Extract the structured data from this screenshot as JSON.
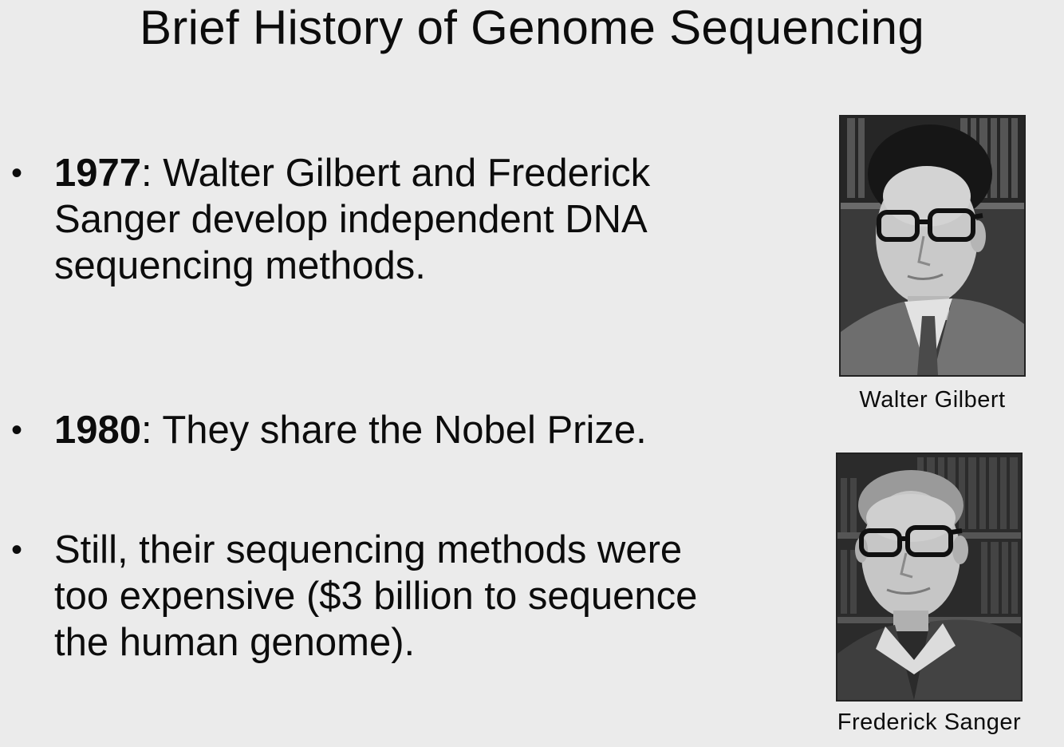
{
  "slide": {
    "title": "Brief History of Genome Sequencing"
  },
  "bullets": [
    {
      "year": "1977",
      "rest": ": Walter Gilbert and Frederick Sanger develop independent DNA sequencing methods."
    },
    {
      "year": "1980",
      "rest": ": They share the Nobel Prize."
    },
    {
      "year": "",
      "rest": "Still, their sequencing methods were too expensive ($3 billion to sequence the human genome)."
    }
  ],
  "bullet_marker": "•",
  "photos": {
    "gilbert_caption": "Walter Gilbert",
    "sanger_caption": "Frederick Sanger"
  },
  "colors": {
    "background": "#ebebeb",
    "text": "#0c0c0c"
  }
}
